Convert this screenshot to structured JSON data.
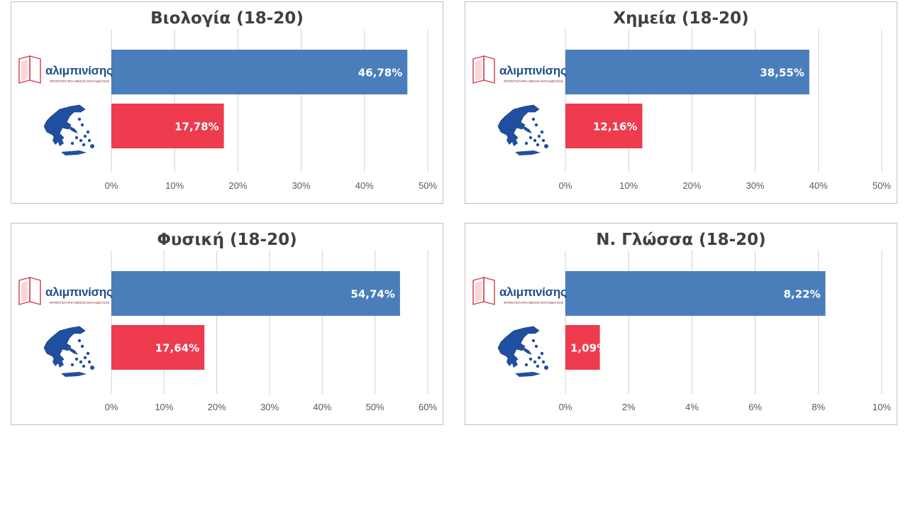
{
  "colors": {
    "school": "#4a7ebb",
    "national": "#ee3b4e",
    "grid": "#d0d0d0",
    "axis_text": "#595959",
    "title": "#404040"
  },
  "logo": {
    "name": "αλιμπινίσης",
    "tagline": "ΦΡΟΝΤΙΣΤΗΡΙΑ ΜΕΣΗΣ ΕΚΠΑΙΔΕΥΣΗΣ"
  },
  "icons": {
    "row1": "alimpinisis-logo-icon",
    "row2": "greece-map-icon"
  },
  "chart_data": [
    {
      "type": "bar",
      "title": "Βιολογία (18-20)",
      "orientation": "horizontal",
      "series": [
        {
          "values": [
            46.78
          ],
          "label": "46,78%"
        },
        {
          "values": [
            17.78
          ],
          "label": "17,78%"
        }
      ],
      "xlim": [
        0,
        50
      ],
      "ticks": [
        "0%",
        "10%",
        "20%",
        "30%",
        "40%",
        "50%"
      ],
      "grid": true
    },
    {
      "type": "bar",
      "title": "Χημεία (18-20)",
      "orientation": "horizontal",
      "series": [
        {
          "values": [
            38.55
          ],
          "label": "38,55%"
        },
        {
          "values": [
            12.16
          ],
          "label": "12,16%"
        }
      ],
      "xlim": [
        0,
        50
      ],
      "ticks": [
        "0%",
        "10%",
        "20%",
        "30%",
        "40%",
        "50%"
      ],
      "grid": true
    },
    {
      "type": "bar",
      "title": "Φυσική (18-20)",
      "orientation": "horizontal",
      "series": [
        {
          "values": [
            54.74
          ],
          "label": "54,74%"
        },
        {
          "values": [
            17.64
          ],
          "label": "17,64%"
        }
      ],
      "xlim": [
        0,
        60
      ],
      "ticks": [
        "0%",
        "10%",
        "20%",
        "30%",
        "40%",
        "50%",
        "60%"
      ],
      "grid": true
    },
    {
      "type": "bar",
      "title": "Ν. Γλώσσα (18-20)",
      "orientation": "horizontal",
      "series": [
        {
          "values": [
            8.22
          ],
          "label": "8,22%"
        },
        {
          "values": [
            1.09
          ],
          "label": "1,09%"
        }
      ],
      "xlim": [
        0,
        10
      ],
      "ticks": [
        "0%",
        "2%",
        "4%",
        "6%",
        "8%",
        "10%"
      ],
      "grid": true
    }
  ]
}
